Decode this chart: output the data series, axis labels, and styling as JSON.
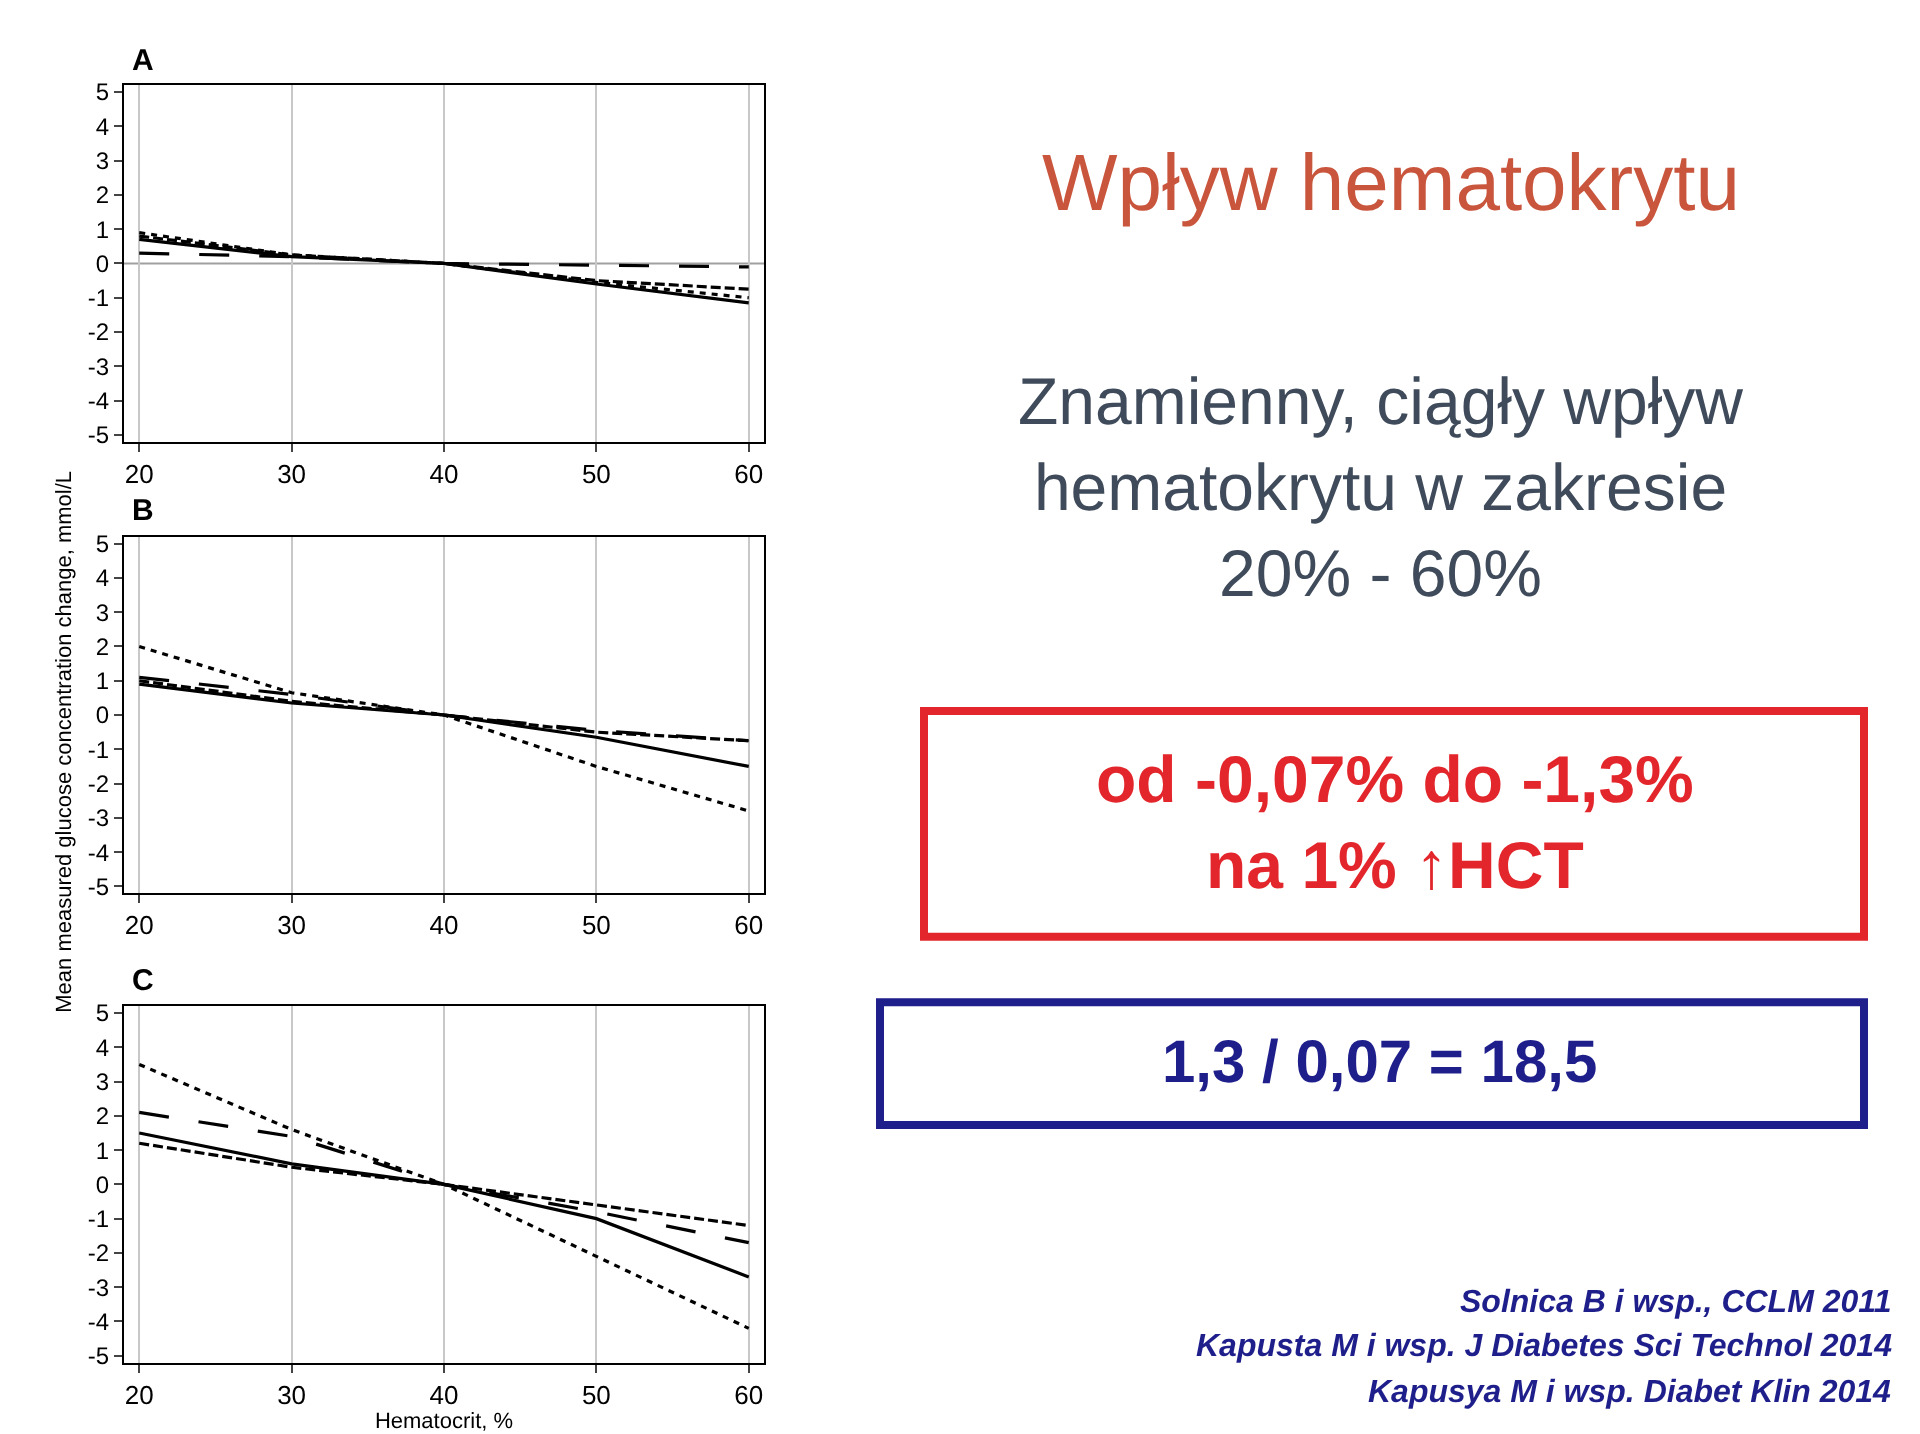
{
  "chart_data": [
    {
      "type": "line",
      "title": "A",
      "x": [
        20,
        30,
        40,
        50,
        60
      ],
      "xlim": [
        19,
        61
      ],
      "xticks": [
        20,
        30,
        40,
        50,
        60
      ],
      "ylim": [
        -5.2,
        5.2
      ],
      "yticks": [
        -5,
        -4,
        -3,
        -2,
        -1,
        0,
        1,
        2,
        3,
        4,
        5
      ],
      "grid": "x",
      "ref_lines": [
        {
          "axis": "y",
          "value": 0,
          "color": "#a0a0a0"
        }
      ],
      "series": [
        {
          "color": "#000000",
          "line_style": "solid",
          "values": [
            0.7,
            0.2,
            0,
            -0.6,
            -1.15
          ]
        },
        {
          "color": "#000000",
          "line_style": "dashed",
          "values": [
            0.8,
            0.25,
            0,
            -0.5,
            -0.75
          ]
        },
        {
          "color": "#000000",
          "line_style": "longdash",
          "values": [
            0.3,
            0.2,
            0,
            -0.05,
            -0.1
          ]
        },
        {
          "color": "#000000",
          "line_style": "dotted",
          "values": [
            0.9,
            0.25,
            0,
            -0.55,
            -1.0
          ]
        }
      ]
    },
    {
      "type": "line",
      "title": "B",
      "ylabel": "Mean measured glucose concentration change, mmol/L",
      "x": [
        20,
        30,
        40,
        50,
        60
      ],
      "xlim": [
        19,
        61
      ],
      "xticks": [
        20,
        30,
        40,
        50,
        60
      ],
      "ylim": [
        -5.2,
        5.2
      ],
      "yticks": [
        -5,
        -4,
        -3,
        -2,
        -1,
        0,
        1,
        2,
        3,
        4,
        5
      ],
      "grid": "x",
      "series": [
        {
          "color": "#000000",
          "line_style": "solid",
          "values": [
            0.9,
            0.35,
            0,
            -0.65,
            -1.5
          ]
        },
        {
          "color": "#000000",
          "line_style": "dashed",
          "values": [
            1.0,
            0.4,
            0,
            -0.5,
            -0.75
          ]
        },
        {
          "color": "#000000",
          "line_style": "longdash",
          "values": [
            1.1,
            0.6,
            0,
            -0.45,
            -0.75
          ]
        },
        {
          "color": "#000000",
          "line_style": "dotted",
          "values": [
            2.0,
            0.65,
            0,
            -1.5,
            -2.8
          ]
        }
      ]
    },
    {
      "type": "line",
      "title": "C",
      "xlabel": "Hematocrit, %",
      "x": [
        20,
        30,
        40,
        50,
        60
      ],
      "xlim": [
        19,
        61
      ],
      "xticks": [
        20,
        30,
        40,
        50,
        60
      ],
      "ylim": [
        -5.2,
        5.2
      ],
      "yticks": [
        -5,
        -4,
        -3,
        -2,
        -1,
        0,
        1,
        2,
        3,
        4,
        5
      ],
      "grid": "x",
      "series": [
        {
          "color": "#000000",
          "line_style": "solid",
          "values": [
            1.5,
            0.6,
            0,
            -1.0,
            -2.7
          ]
        },
        {
          "color": "#000000",
          "line_style": "dashed",
          "values": [
            1.2,
            0.5,
            0,
            -0.6,
            -1.2
          ]
        },
        {
          "color": "#000000",
          "line_style": "longdash",
          "values": [
            2.1,
            1.4,
            0,
            -0.8,
            -1.7
          ]
        },
        {
          "color": "#000000",
          "line_style": "dotted",
          "values": [
            3.5,
            1.6,
            0,
            -2.1,
            -4.2
          ]
        }
      ]
    },
    {
      "type": "other",
      "title": "Wpływ hematokrytu",
      "annotations": [
        "Znamienny, ciągły wpływ\nhematokrytu w zakresie\n20% - 60%",
        "od -0,07% do -1,3%\nna 1% ↑HCT",
        "1,3 / 0,07 = 18,5",
        "Solnica B i wsp., CCLM 2011",
        "Kapusta M i wsp. J Diabetes Sci Technol 2014",
        "Kapusya M i wsp. Diabet Klin 2014"
      ]
    }
  ]
}
